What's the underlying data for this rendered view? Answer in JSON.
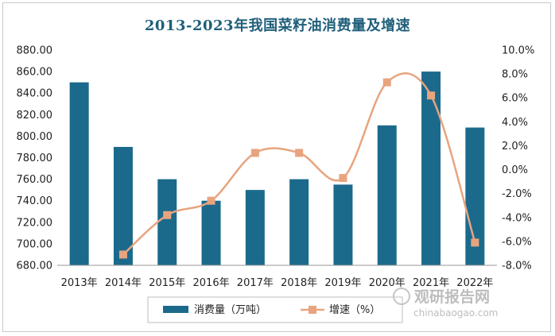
{
  "chart_data": {
    "type": "bar+line",
    "title": "2013-2023年我国菜籽油消费量及增速",
    "categories": [
      "2013年",
      "2014年",
      "2015年",
      "2016年",
      "2017年",
      "2018年",
      "2019年",
      "2020年",
      "2021年",
      "2022年"
    ],
    "series": [
      {
        "name": "消费量（万吨）",
        "type": "bar",
        "axis": "left",
        "color": "#1b6a8c",
        "values": [
          850,
          790,
          760,
          740,
          750,
          760,
          755,
          810,
          860,
          808
        ]
      },
      {
        "name": "增速（%）",
        "type": "line",
        "axis": "right",
        "color": "#e8a47e",
        "values": [
          null,
          -7.1,
          -3.8,
          -2.6,
          1.4,
          1.4,
          -0.7,
          7.3,
          6.2,
          -6.1
        ]
      }
    ],
    "left_axis": {
      "ylim": [
        680,
        880
      ],
      "ticks": [
        "680.00",
        "700.00",
        "720.00",
        "740.00",
        "760.00",
        "780.00",
        "800.00",
        "820.00",
        "840.00",
        "860.00",
        "880.00"
      ]
    },
    "right_axis": {
      "ylim": [
        -8,
        10
      ],
      "ticks": [
        "-8.0%",
        "-6.0%",
        "-4.0%",
        "-2.0%",
        "0.0%",
        "2.0%",
        "4.0%",
        "6.0%",
        "8.0%",
        "10.0%"
      ]
    },
    "legend_position": "bottom"
  },
  "watermark": {
    "brand": "观研报告网",
    "url": "chinabaogao.com"
  }
}
